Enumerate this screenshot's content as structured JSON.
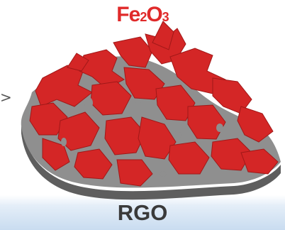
{
  "title": {
    "main": "Fe",
    "sub1": "2",
    "mid": "O",
    "sub2": "3"
  },
  "footer": "RGO",
  "arrow_glyph": ">",
  "colors": {
    "title_red": "#e02a2a",
    "footer_gray": "#3a3a3a",
    "flake_red": "#d42626",
    "flake_dark": "#a11818",
    "sheet_gray": "#8f8f8f",
    "sheet_dark": "#5e5e5e"
  }
}
